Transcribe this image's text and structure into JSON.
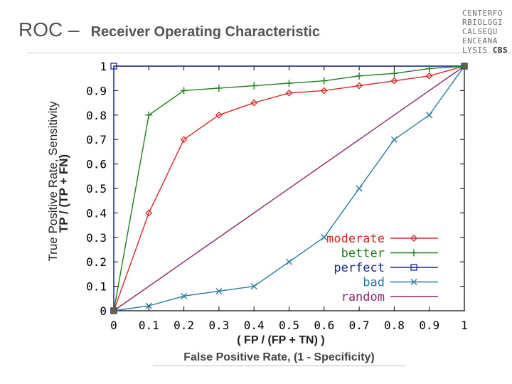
{
  "header": {
    "title": "ROC –",
    "subtitle": "Receiver Operating Characteristic",
    "logo_lines": [
      "CENTERFO",
      "RBIOLOGI",
      "CALSEQU",
      "ENCEANA",
      "LYSIS"
    ],
    "logo_brand": "CBS"
  },
  "chart_data": {
    "type": "line",
    "xlabel_top": "( FP / (FP + TN) )",
    "xlabel_bottom": "False Positive Rate, (1 - Specificity)",
    "ylabel_outer": "True Positive Rate, Sensitivity",
    "ylabel_inner": "TP / (TP + FN)",
    "xlim": [
      0,
      1
    ],
    "ylim": [
      0,
      1
    ],
    "x_ticks": [
      "0",
      "0.1",
      "0.2",
      "0.3",
      "0.4",
      "0.5",
      "0.6",
      "0.7",
      "0.8",
      "0.9",
      "1"
    ],
    "y_ticks": [
      "0",
      "0.1",
      "0.2",
      "0.3",
      "0.4",
      "0.5",
      "0.6",
      "0.7",
      "0.8",
      "0.9",
      "1"
    ],
    "legend_position": "bottom-right",
    "grid": false,
    "series": [
      {
        "name": "moderate",
        "color": "#d62a2a",
        "marker": "diamond",
        "x": [
          0,
          0.1,
          0.2,
          0.3,
          0.4,
          0.5,
          0.6,
          0.7,
          0.8,
          0.9,
          1
        ],
        "y": [
          0,
          0.4,
          0.7,
          0.8,
          0.85,
          0.89,
          0.9,
          0.92,
          0.94,
          0.96,
          1
        ]
      },
      {
        "name": "better",
        "color": "#1f7f1f",
        "marker": "plus",
        "x": [
          0,
          0.1,
          0.2,
          0.3,
          0.4,
          0.5,
          0.6,
          0.7,
          0.8,
          0.9,
          1
        ],
        "y": [
          0,
          0.8,
          0.9,
          0.91,
          0.92,
          0.93,
          0.94,
          0.96,
          0.97,
          0.99,
          1
        ]
      },
      {
        "name": "perfect",
        "color": "#1a2a8a",
        "marker": "square",
        "x": [
          0,
          0,
          1
        ],
        "y": [
          0,
          1,
          1
        ]
      },
      {
        "name": "bad",
        "color": "#2a7aa0",
        "marker": "x",
        "x": [
          0,
          0.1,
          0.2,
          0.3,
          0.4,
          0.5,
          0.6,
          0.7,
          0.8,
          0.9,
          1
        ],
        "y": [
          0,
          0.02,
          0.06,
          0.08,
          0.1,
          0.2,
          0.3,
          0.5,
          0.7,
          0.8,
          1
        ]
      },
      {
        "name": "random",
        "color": "#8a2a6a",
        "marker": "none",
        "x": [
          0,
          1
        ],
        "y": [
          0,
          1
        ]
      }
    ]
  }
}
